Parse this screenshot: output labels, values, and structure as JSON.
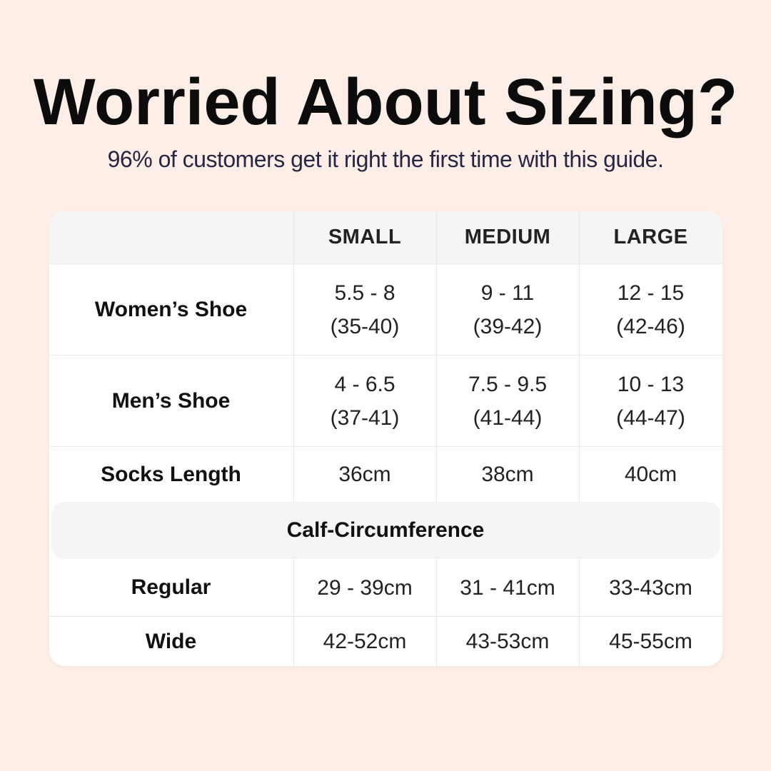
{
  "theme": {
    "background": "#fdefe7",
    "panel": "#ffffff",
    "band_gray": "#f5f5f6",
    "divider": "#e9e9e9",
    "title_color": "#0c0c0c",
    "subtitle_color": "#272744"
  },
  "page": {
    "title": "Worried About Sizing?",
    "subtitle": "96% of customers get it right the first time with this guide."
  },
  "table": {
    "columns": [
      "SMALL",
      "MEDIUM",
      "LARGE"
    ],
    "rows": [
      {
        "label": "Women’s Shoe",
        "values": [
          [
            "5.5 - 8",
            "(35-40)"
          ],
          [
            "9 - 11",
            "(39-42)"
          ],
          [
            "12 - 15",
            "(42-46)"
          ]
        ]
      },
      {
        "label": "Men’s Shoe",
        "values": [
          [
            "4 - 6.5",
            "(37-41)"
          ],
          [
            "7.5 - 9.5",
            "(41-44)"
          ],
          [
            "10 - 13",
            "(44-47)"
          ]
        ]
      },
      {
        "label": "Socks Length",
        "values": [
          [
            "36cm"
          ],
          [
            "38cm"
          ],
          [
            "40cm"
          ]
        ]
      }
    ],
    "section_header": "Calf-Circumference",
    "section_rows": [
      {
        "label": "Regular",
        "values": [
          [
            "29 - 39cm"
          ],
          [
            "31 - 41cm"
          ],
          [
            "33-43cm"
          ]
        ]
      },
      {
        "label": "Wide",
        "values": [
          [
            "42-52cm"
          ],
          [
            "43-53cm"
          ],
          [
            "45-55cm"
          ]
        ]
      }
    ]
  }
}
